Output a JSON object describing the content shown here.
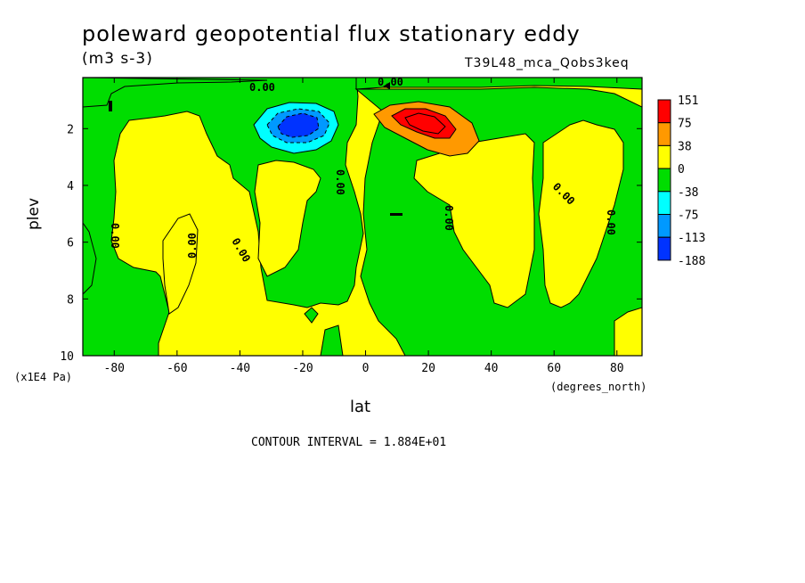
{
  "chart_data": {
    "type": "contour",
    "title": "poleward geopotential flux stationary eddy",
    "units": "(m3 s-3)",
    "experiment": "T39L48_mca_Qobs3keq",
    "xlabel": "lat",
    "x_units": "(degrees_north)",
    "ylabel": "plev",
    "y_units": "(x1E4 Pa)",
    "xlim": [
      -90,
      88
    ],
    "ylim": [
      10,
      0.2
    ],
    "xticks": [
      -80,
      -60,
      -40,
      -20,
      0,
      20,
      40,
      60,
      80
    ],
    "yticks": [
      2,
      4,
      6,
      8,
      10
    ],
    "contour_interval_text": "CONTOUR INTERVAL = 1.884E+01",
    "contour_interval": 18.84,
    "contour_labels": [
      "0.00",
      "0.00",
      "0.00",
      "0.00",
      "0.00",
      "0.00",
      "0.00",
      "0.00",
      "0.00"
    ],
    "colorbar": {
      "labels": [
        "151",
        "75",
        "38",
        "0",
        "-38",
        "-75",
        "-113",
        "-188"
      ],
      "colors": [
        "#ff0000",
        "#ff9900",
        "#ffff00",
        "#00dd00",
        "#00ffff",
        "#0099ff",
        "#0033ff"
      ]
    },
    "extrema": [
      {
        "type": "max",
        "lat": 20,
        "plev": 1.8,
        "approx_value": 151
      },
      {
        "type": "min",
        "lat": -20,
        "plev": 2.0,
        "approx_value": -188
      }
    ]
  }
}
